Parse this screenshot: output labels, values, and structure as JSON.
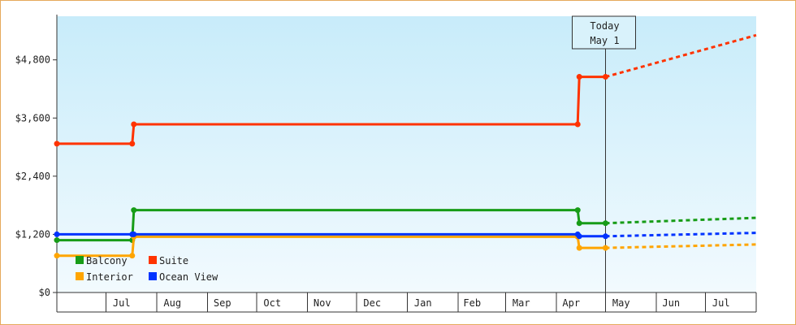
{
  "chart_data": {
    "type": "line",
    "subtype": "step",
    "title": "",
    "xlabel": "",
    "ylabel": "",
    "ylim": [
      0,
      5700
    ],
    "y_ticks": [
      {
        "value": 0,
        "label": "$0"
      },
      {
        "value": 1200,
        "label": "$1,200"
      },
      {
        "value": 2400,
        "label": "$2,400"
      },
      {
        "value": 3600,
        "label": "$3,600"
      },
      {
        "value": 4800,
        "label": "$4,800"
      }
    ],
    "x_range": [
      "2023-06-01",
      "2024-08-01"
    ],
    "x_ticks": [
      "Jul",
      "Aug",
      "Sep",
      "Oct",
      "Nov",
      "Dec",
      "Jan",
      "Feb",
      "Mar",
      "Apr",
      "May",
      "Jun",
      "Jul"
    ],
    "today": {
      "line1": "Today",
      "line2": "May 1",
      "date": "2024-05-01"
    },
    "background": {
      "top": "#c8ecfa",
      "bottom": "#f2fafe"
    },
    "legend_position": "bottom-left",
    "series": [
      {
        "name": "Balcony",
        "color": "#179c17",
        "points": [
          [
            "2023-06-01",
            1080
          ],
          [
            "2023-07-17",
            1080
          ],
          [
            "2023-07-18",
            1700
          ],
          [
            "2024-04-14",
            1700
          ],
          [
            "2024-04-15",
            1430
          ],
          [
            "2024-05-01",
            1430
          ]
        ],
        "forecast": [
          [
            "2024-05-01",
            1430
          ],
          [
            "2024-08-01",
            1540
          ]
        ]
      },
      {
        "name": "Suite",
        "color": "#ff3300",
        "points": [
          [
            "2023-06-01",
            3070
          ],
          [
            "2023-07-17",
            3070
          ],
          [
            "2023-07-18",
            3470
          ],
          [
            "2024-04-14",
            3470
          ],
          [
            "2024-04-15",
            4450
          ],
          [
            "2024-05-01",
            4450
          ]
        ],
        "forecast": [
          [
            "2024-05-01",
            4450
          ],
          [
            "2024-08-01",
            5310
          ]
        ]
      },
      {
        "name": "Interior",
        "color": "#ffa500",
        "points": [
          [
            "2023-06-01",
            760
          ],
          [
            "2023-07-17",
            760
          ],
          [
            "2023-07-18",
            1150
          ],
          [
            "2024-04-14",
            1150
          ],
          [
            "2024-04-15",
            920
          ],
          [
            "2024-05-01",
            920
          ]
        ],
        "forecast": [
          [
            "2024-05-01",
            920
          ],
          [
            "2024-08-01",
            990
          ]
        ]
      },
      {
        "name": "Ocean View",
        "color": "#0033ff",
        "points": [
          [
            "2023-06-01",
            1200
          ],
          [
            "2023-07-17",
            1200
          ],
          [
            "2023-07-18",
            1200
          ],
          [
            "2024-04-14",
            1200
          ],
          [
            "2024-04-15",
            1160
          ],
          [
            "2024-05-01",
            1160
          ]
        ],
        "forecast": [
          [
            "2024-05-01",
            1160
          ],
          [
            "2024-08-01",
            1230
          ]
        ]
      }
    ]
  }
}
